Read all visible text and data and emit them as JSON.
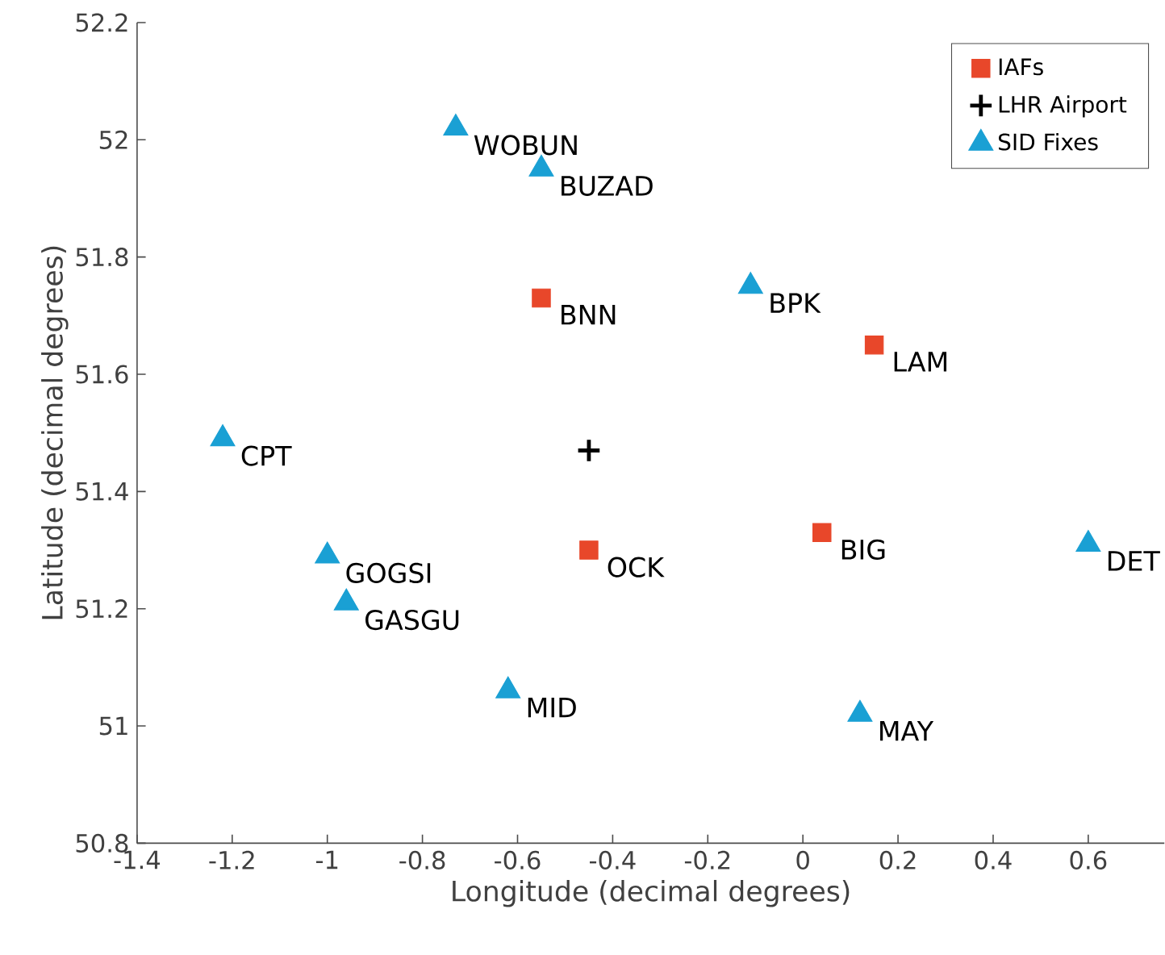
{
  "chart_data": {
    "type": "scatter",
    "xlabel": "Longitude (decimal degrees)",
    "ylabel": "Latitude (decimal degrees)",
    "series": [
      {
        "name": "IAFs",
        "color": "#e8472a",
        "marker": "square",
        "x": [
          -0.55,
          0.15,
          -0.45,
          0.04
        ],
        "values": [
          51.73,
          51.65,
          51.3,
          51.33
        ]
      },
      {
        "name": "LHR Airport",
        "color": "#000000",
        "marker": "cross",
        "x": [
          -0.45
        ],
        "values": [
          51.47
        ]
      },
      {
        "name": "SID Fixes",
        "color": "#1aa0d4",
        "marker": "triangle",
        "x": [
          -0.73,
          -0.55,
          -0.11,
          -1.22,
          -1.0,
          -0.96,
          -0.62,
          0.12,
          0.6
        ],
        "values": [
          52.02,
          51.95,
          51.75,
          51.49,
          51.29,
          51.21,
          51.06,
          51.02,
          51.31
        ]
      }
    ],
    "annotations": [
      {
        "text": "WOBUN",
        "x": -0.73,
        "y": 52.02
      },
      {
        "text": "BUZAD",
        "x": -0.55,
        "y": 51.95
      },
      {
        "text": "BNN",
        "x": -0.55,
        "y": 51.73
      },
      {
        "text": "BPK",
        "x": -0.11,
        "y": 51.75
      },
      {
        "text": "LAM",
        "x": 0.15,
        "y": 51.65
      },
      {
        "text": "CPT",
        "x": -1.22,
        "y": 51.49
      },
      {
        "text": "GOGSI",
        "x": -1.0,
        "y": 51.29
      },
      {
        "text": "OCK",
        "x": -0.45,
        "y": 51.3
      },
      {
        "text": "BIG",
        "x": 0.04,
        "y": 51.33
      },
      {
        "text": "DET",
        "x": 0.6,
        "y": 51.31
      },
      {
        "text": "GASGU",
        "x": -0.96,
        "y": 51.21
      },
      {
        "text": "MID",
        "x": -0.62,
        "y": 51.06
      },
      {
        "text": "MAY",
        "x": 0.12,
        "y": 51.02
      }
    ],
    "xlim": [
      -1.4,
      0.76
    ],
    "ylim": [
      50.8,
      52.2
    ],
    "xticks": [
      -1.4,
      -1.2,
      -1,
      -0.8,
      -0.6,
      -0.4,
      -0.2,
      0,
      0.2,
      0.4,
      0.6
    ],
    "yticks": [
      50.8,
      51,
      51.2,
      51.4,
      51.6,
      51.8,
      52,
      52.2
    ],
    "legend": "top right",
    "grid": false
  }
}
